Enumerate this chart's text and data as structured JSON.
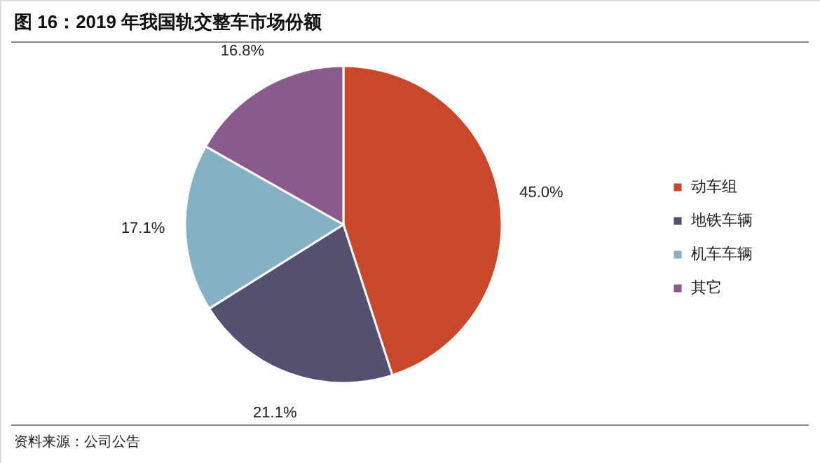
{
  "chart_data": {
    "type": "pie",
    "title": "图 16：2019 年我国轨交整车市场份额",
    "categories": [
      "动车组",
      "地铁车辆",
      "机车车辆",
      "其它"
    ],
    "values": [
      45.0,
      21.1,
      17.1,
      16.8
    ],
    "value_labels": [
      "45.0%",
      "21.1%",
      "17.1%",
      "16.8%"
    ],
    "colors": [
      "#c9472a",
      "#535070",
      "#86b0c4",
      "#8a5a8a"
    ],
    "legend": "right",
    "annotations": [
      "资料来源：公司公告"
    ]
  }
}
